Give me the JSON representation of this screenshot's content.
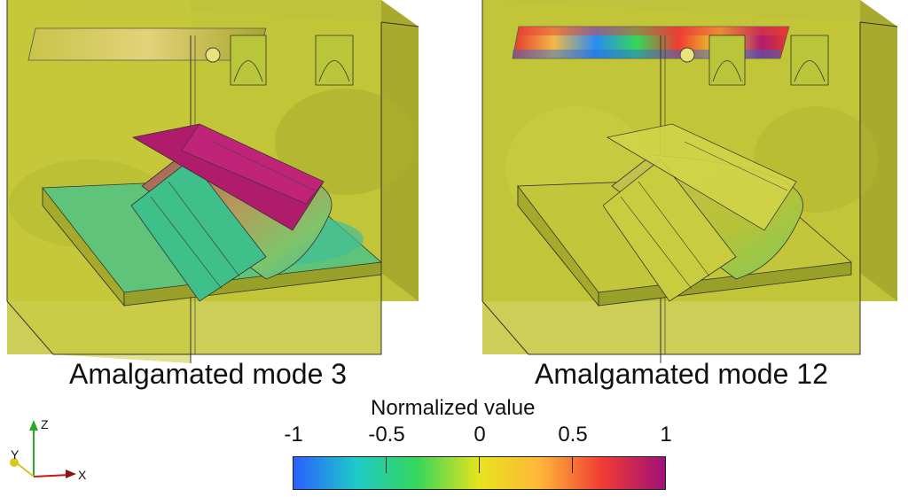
{
  "captions": {
    "left": "Amalgamated mode 3",
    "right": "Amalgamated mode 12"
  },
  "colorbar": {
    "title": "Normalized value",
    "ticks": [
      "-1",
      "-0.5",
      "0",
      "0.5",
      "1"
    ],
    "colormap": [
      "#2a5fff",
      "#1ec9c9",
      "#36d65a",
      "#e7e41d",
      "#ffb43a",
      "#f03a34",
      "#a01078"
    ]
  },
  "axes": {
    "x": "X",
    "y": "Y",
    "z": "Z"
  },
  "colors": {
    "body": "#c5c836",
    "body_dark": "#a8ac2b",
    "plate_green": "#4cc68a",
    "plate_magenta": "#b01c6c"
  }
}
